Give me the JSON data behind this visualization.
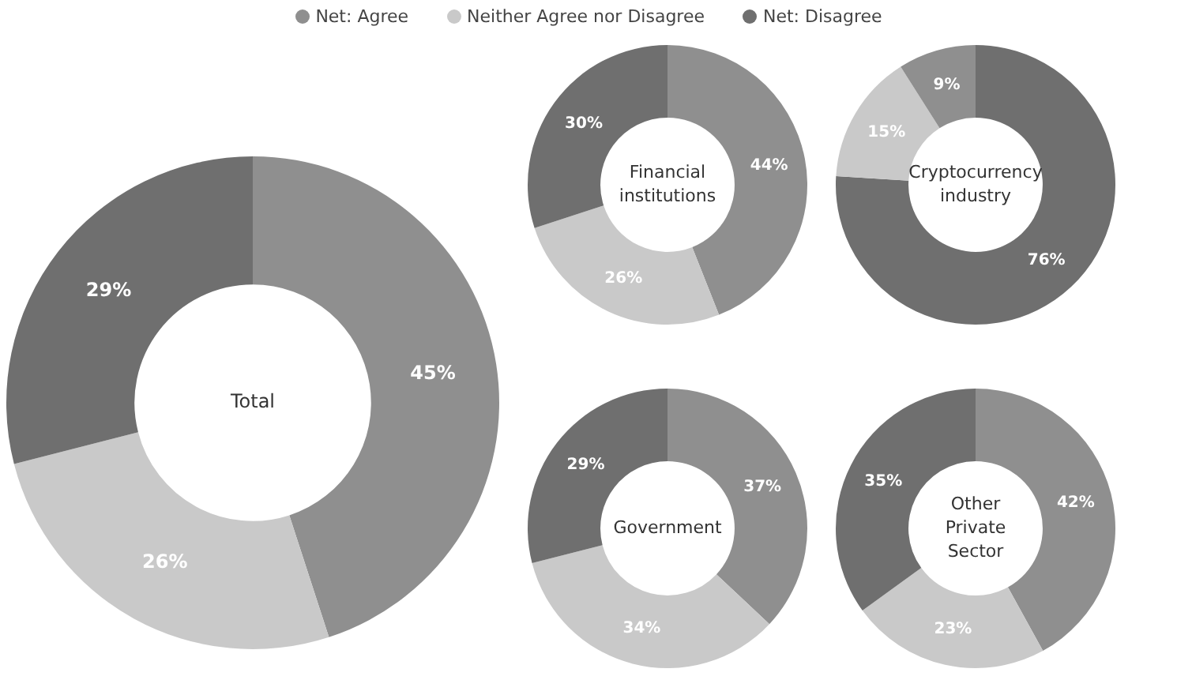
{
  "chart_data": [
    {
      "type": "donut",
      "title": "Total",
      "categories": [
        "Net: Agree",
        "Neither Agree nor Disagree",
        "Net: Disagree"
      ],
      "values": [
        45,
        26,
        29
      ],
      "value_labels": [
        "45%",
        "26%",
        "29%"
      ],
      "colors": [
        "#8f8f8f",
        "#c9c9c9",
        "#6f6f6f"
      ],
      "legend": "top"
    },
    {
      "type": "donut",
      "title": "Financial institutions",
      "categories": [
        null,
        null,
        null
      ],
      "values": [
        44,
        26,
        30
      ],
      "value_labels": [
        "44%",
        "26%",
        "30%"
      ],
      "colors": [
        "#8f8f8f",
        "#c9c9c9",
        "#6f6f6f"
      ]
    },
    {
      "type": "donut",
      "title": "Cryptocurrency industry",
      "categories": [
        null,
        null,
        null
      ],
      "values": [
        76,
        15,
        9
      ],
      "value_labels": [
        "76%",
        "15%",
        "9%"
      ],
      "colors": [
        "#6f6f6f",
        "#c9c9c9",
        "#8f8f8f"
      ]
    },
    {
      "type": "donut",
      "title": "Government",
      "categories": [
        null,
        null,
        null
      ],
      "values": [
        37,
        34,
        29
      ],
      "value_labels": [
        "37%",
        "34%",
        "29%"
      ],
      "colors": [
        "#8f8f8f",
        "#c9c9c9",
        "#6f6f6f"
      ]
    },
    {
      "type": "donut",
      "title": "Other Private Sector",
      "categories": [
        null,
        null,
        null
      ],
      "values": [
        42,
        23,
        35
      ],
      "value_labels": [
        "42%",
        "23%",
        "35%"
      ],
      "colors": [
        "#8f8f8f",
        "#c9c9c9",
        "#6f6f6f"
      ]
    }
  ]
}
